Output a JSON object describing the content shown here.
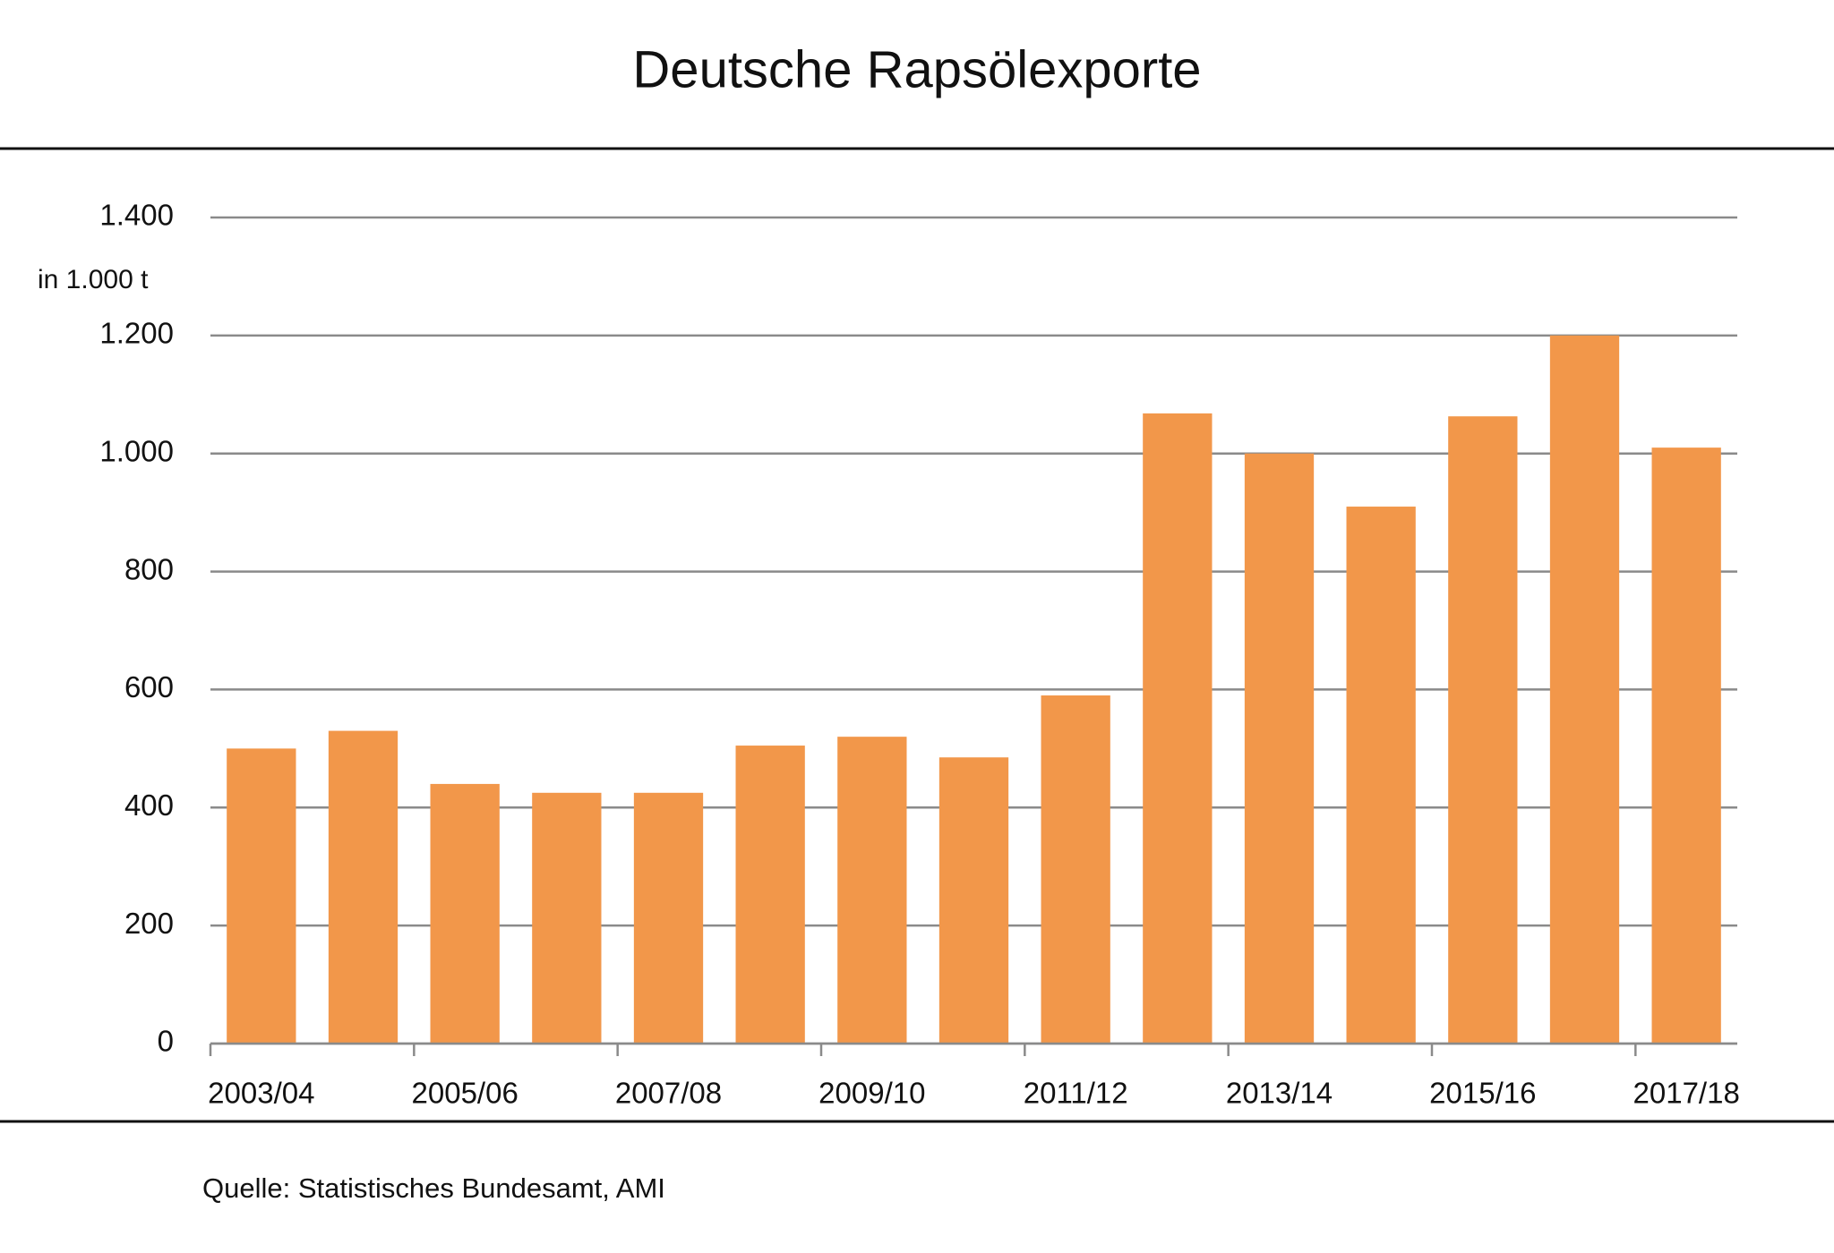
{
  "chart_data": {
    "type": "bar",
    "title": "Deutsche Rapsölexporte",
    "y_label": "in 1.000 t",
    "source": "Quelle: Statistisches Bundesamt, AMI",
    "categories": [
      "2003/04",
      null,
      "2005/06",
      null,
      "2007/08",
      null,
      "2009/10",
      null,
      "2011/12",
      null,
      "2013/14",
      null,
      "2015/16",
      null,
      "2017/18"
    ],
    "values": [
      500,
      530,
      440,
      425,
      425,
      505,
      520,
      485,
      590,
      1068,
      1000,
      910,
      1063,
      1200,
      1010
    ],
    "color": "#f2974a",
    "ylim": [
      0,
      1400
    ],
    "yticks": [
      0,
      200,
      400,
      600,
      800,
      {
        "value": 1000,
        "label": "1.000"
      },
      {
        "value": 1200,
        "label": "1.200"
      },
      {
        "value": 1400,
        "label": "1.400"
      }
    ],
    "grid": true
  }
}
